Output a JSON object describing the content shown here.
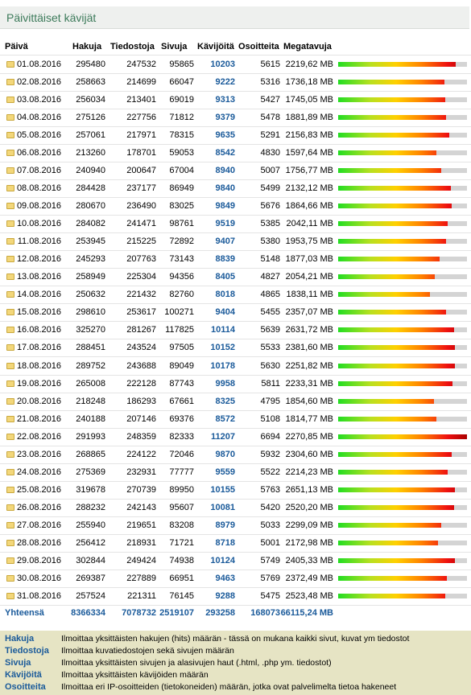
{
  "title": "Päivittäiset kävijät",
  "table": {
    "columns": [
      "Päivä",
      "Hakuja",
      "Tiedostoja",
      "Sivuja",
      "Kävijöitä",
      "Osoitteita",
      "Megatavuja"
    ],
    "rows": [
      [
        "01.08.2016",
        295480,
        247532,
        95865,
        10203,
        5615,
        "2219,62 MB"
      ],
      [
        "02.08.2016",
        258663,
        214699,
        66047,
        9222,
        5316,
        "1736,18 MB"
      ],
      [
        "03.08.2016",
        256034,
        213401,
        69019,
        9313,
        5427,
        "1745,05 MB"
      ],
      [
        "04.08.2016",
        275126,
        227756,
        71812,
        9379,
        5478,
        "1881,89 MB"
      ],
      [
        "05.08.2016",
        257061,
        217971,
        78315,
        9635,
        5291,
        "2156,83 MB"
      ],
      [
        "06.08.2016",
        213260,
        178701,
        59053,
        8542,
        4830,
        "1597,64 MB"
      ],
      [
        "07.08.2016",
        240940,
        200647,
        67004,
        8940,
        5007,
        "1756,77 MB"
      ],
      [
        "08.08.2016",
        284428,
        237177,
        86949,
        9840,
        5499,
        "2132,12 MB"
      ],
      [
        "09.08.2016",
        280670,
        236490,
        83025,
        9849,
        5676,
        "1864,66 MB"
      ],
      [
        "10.08.2016",
        284082,
        241471,
        98761,
        9519,
        5385,
        "2042,11 MB"
      ],
      [
        "11.08.2016",
        253945,
        215225,
        72892,
        9407,
        5380,
        "1953,75 MB"
      ],
      [
        "12.08.2016",
        245293,
        207763,
        73143,
        8839,
        5148,
        "1877,03 MB"
      ],
      [
        "13.08.2016",
        258949,
        225304,
        94356,
        8405,
        4827,
        "2054,21 MB"
      ],
      [
        "14.08.2016",
        250632,
        221432,
        82760,
        8018,
        4865,
        "1838,11 MB"
      ],
      [
        "15.08.2016",
        298610,
        253617,
        100271,
        9404,
        5455,
        "2357,07 MB"
      ],
      [
        "16.08.2016",
        325270,
        281267,
        117825,
        10114,
        5639,
        "2631,72 MB"
      ],
      [
        "17.08.2016",
        288451,
        243524,
        97505,
        10152,
        5533,
        "2381,60 MB"
      ],
      [
        "18.08.2016",
        289752,
        243688,
        89049,
        10178,
        5630,
        "2251,82 MB"
      ],
      [
        "19.08.2016",
        265008,
        222128,
        87743,
        9958,
        5811,
        "2233,31 MB"
      ],
      [
        "20.08.2016",
        218248,
        186293,
        67661,
        8325,
        4795,
        "1854,60 MB"
      ],
      [
        "21.08.2016",
        240188,
        207146,
        69376,
        8572,
        5108,
        "1814,77 MB"
      ],
      [
        "22.08.2016",
        291993,
        248359,
        82333,
        11207,
        6694,
        "2270,85 MB"
      ],
      [
        "23.08.2016",
        268865,
        224122,
        72046,
        9870,
        5932,
        "2304,60 MB"
      ],
      [
        "24.08.2016",
        275369,
        232931,
        77777,
        9559,
        5522,
        "2214,23 MB"
      ],
      [
        "25.08.2016",
        319678,
        270739,
        89950,
        10155,
        5763,
        "2651,13 MB"
      ],
      [
        "26.08.2016",
        288232,
        242143,
        95607,
        10081,
        5420,
        "2520,20 MB"
      ],
      [
        "27.08.2016",
        255940,
        219651,
        83208,
        8979,
        5033,
        "2299,09 MB"
      ],
      [
        "28.08.2016",
        256412,
        218931,
        71721,
        8718,
        5001,
        "2172,98 MB"
      ],
      [
        "29.08.2016",
        302844,
        249424,
        74938,
        10124,
        5749,
        "2405,33 MB"
      ],
      [
        "30.08.2016",
        269387,
        227889,
        66951,
        9463,
        5769,
        "2372,49 MB"
      ],
      [
        "31.08.2016",
        257524,
        221311,
        76145,
        9288,
        5475,
        "2523,48 MB"
      ]
    ],
    "totals": [
      "Yhteensä",
      8366334,
      7078732,
      2519107,
      293258,
      168073,
      "66115,24 MB"
    ]
  },
  "legend": [
    {
      "term": "Hakuja",
      "description": "Ilmoittaa yksittäisten hakujen (hits) määrän - tässä on mukana kaikki sivut, kuvat ym tiedostot"
    },
    {
      "term": "Tiedostoja",
      "description": "Ilmoittaa kuvatiedostojen sekä sivujen määrän"
    },
    {
      "term": "Sivuja",
      "description": "Ilmoittaa yksittäisten sivujen ja alasivujen haut (.html, .php ym. tiedostot)"
    },
    {
      "term": "Kävijöitä",
      "description": "Ilmoittaa yksittäisten kävijöiden määrän"
    },
    {
      "term": "Osoitteita",
      "description": "Ilmoittaa eri IP-osoitteiden (tietokoneiden) määrän, jotka ovat palvelimelta tietoa hakeneet"
    }
  ]
}
